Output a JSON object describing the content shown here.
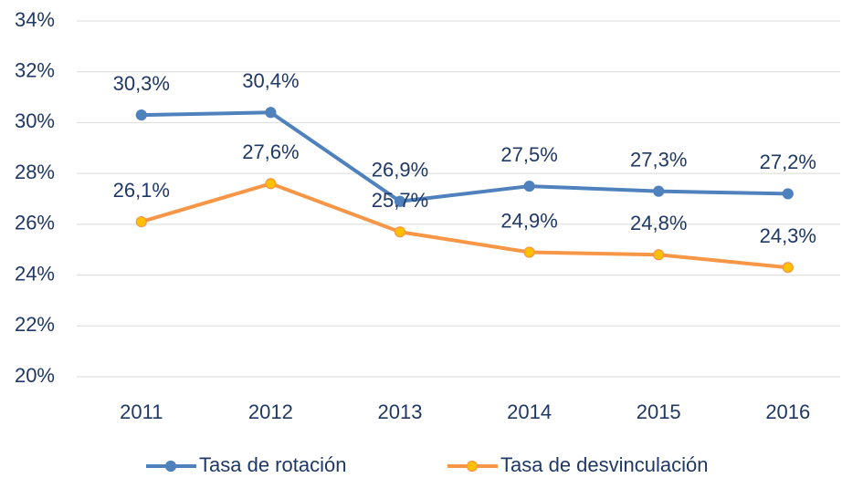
{
  "chart_data": {
    "type": "line",
    "categories": [
      "2011",
      "2012",
      "2013",
      "2014",
      "2015",
      "2016"
    ],
    "series": [
      {
        "name": "Tasa de rotación",
        "color": "#4f81bd",
        "marker_color": "#4f81bd",
        "values": [
          30.3,
          30.4,
          26.9,
          27.5,
          27.3,
          27.2
        ],
        "value_labels": [
          "30,3%",
          "30,4%",
          "26,9%",
          "27,5%",
          "27,3%",
          "27,2%"
        ]
      },
      {
        "name": "Tasa de desvinculación",
        "color": "#f79646",
        "marker_color": "#ffc000",
        "values": [
          26.1,
          27.6,
          25.7,
          24.9,
          24.8,
          24.3
        ],
        "value_labels": [
          "26,1%",
          "27,6%",
          "25,7%",
          "24,9%",
          "24,8%",
          "24,3%"
        ]
      }
    ],
    "ylim": [
      20,
      34
    ],
    "yticks": [
      {
        "value": 20,
        "label": "20%"
      },
      {
        "value": 22,
        "label": "22%"
      },
      {
        "value": 24,
        "label": "24%"
      },
      {
        "value": 26,
        "label": "26%"
      },
      {
        "value": 28,
        "label": "28%"
      },
      {
        "value": 30,
        "label": "30%"
      },
      {
        "value": 32,
        "label": "32%"
      },
      {
        "value": 34,
        "label": "34%"
      }
    ],
    "grid": true,
    "legend": "bottom"
  }
}
